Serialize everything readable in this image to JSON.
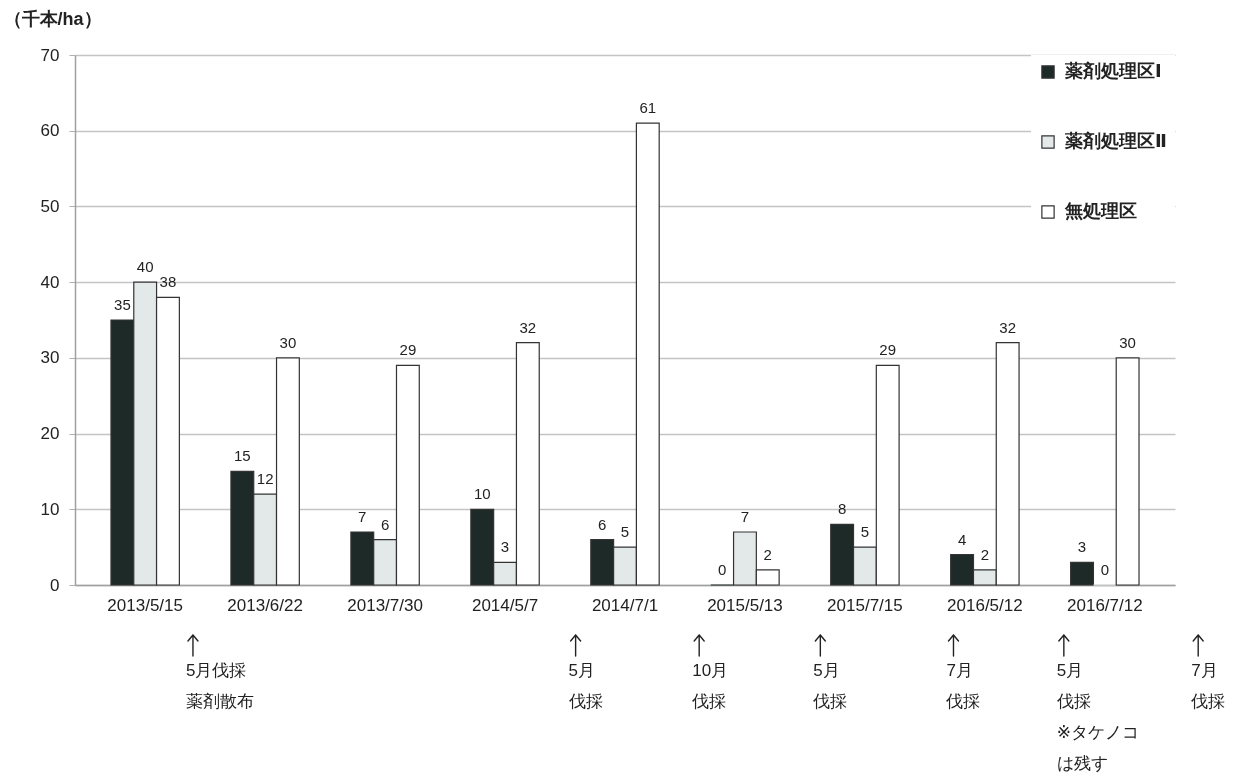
{
  "chart_data": {
    "type": "bar",
    "ylabel": "（千本/ha）",
    "categories": [
      "2013/5/15",
      "2013/6/22",
      "2013/7/30",
      "2014/5/7",
      "2014/7/1",
      "2015/5/13",
      "2015/7/15",
      "2016/5/12",
      "2016/7/12"
    ],
    "series": [
      {
        "name": "薬剤処理区Ⅰ",
        "color": "#1e2a28",
        "values": [
          35,
          15,
          7,
          10,
          6,
          0,
          8,
          4,
          3
        ]
      },
      {
        "name": "薬剤処理区Ⅱ",
        "color": "#e3e8e8",
        "values": [
          40,
          12,
          6,
          3,
          5,
          7,
          5,
          2,
          0
        ]
      },
      {
        "name": "無処理区",
        "color": "#ffffff",
        "values": [
          38,
          30,
          29,
          32,
          61,
          2,
          29,
          32,
          30
        ]
      }
    ],
    "ylim": [
      0,
      70
    ],
    "yticks": [
      0,
      10,
      20,
      30,
      40,
      50,
      60,
      70
    ],
    "grid": "y",
    "legend": "top right",
    "data_labels": true,
    "annotations": [
      "5月伐採薬剤散布",
      "5月伐採",
      "10月伐採",
      "5月伐採",
      "7月伐採",
      "5月伐採※タケノコは残す",
      "7月伐採"
    ]
  }
}
